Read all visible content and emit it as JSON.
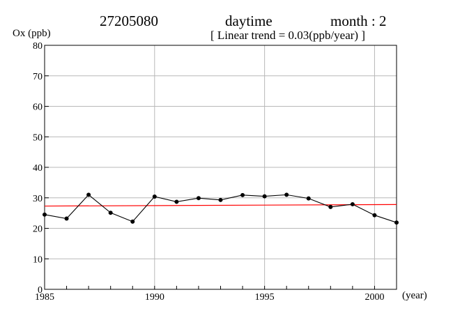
{
  "header": {
    "station": "27205080",
    "period": "daytime",
    "month_label": "month : 2",
    "trend_label": "[ Linear trend = 0.03(ppb/year) ]"
  },
  "chart_data": {
    "type": "line",
    "ylabel": "Ox (ppb)",
    "xlabel": "(year)",
    "xlim": [
      1985,
      2001
    ],
    "ylim": [
      0,
      80
    ],
    "x_ticks": [
      1985,
      1990,
      1995,
      2000
    ],
    "y_ticks": [
      0,
      10,
      20,
      30,
      40,
      50,
      60,
      70,
      80
    ],
    "grid": true,
    "series": [
      {
        "x": [
          1985,
          1986,
          1987,
          1988,
          1989,
          1990,
          1991,
          1992,
          1993,
          1994,
          1995,
          1996,
          1997,
          1998,
          1999,
          2000,
          2001
        ],
        "y": [
          24.5,
          23.2,
          31.0,
          25.1,
          22.2,
          30.4,
          28.7,
          29.9,
          29.3,
          30.9,
          30.5,
          31.0,
          29.8,
          27.0,
          27.9,
          24.3,
          21.9
        ],
        "color": "#000000",
        "markers": true
      }
    ],
    "trend": {
      "slope": 0.03,
      "y_start": 27.3,
      "y_end": 27.8,
      "color": "#ff0000"
    }
  }
}
